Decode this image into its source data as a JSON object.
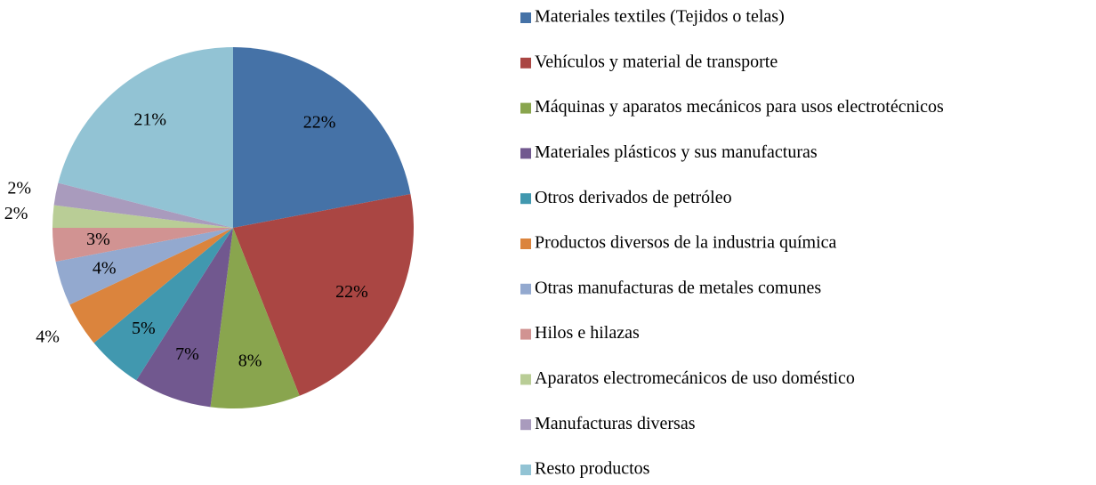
{
  "chart_data": {
    "type": "pie",
    "categories": [
      "Materiales textiles (Tejidos o telas)",
      "Vehículos y material de transporte",
      "Máquinas y aparatos mecánicos para usos electrotécnicos",
      "Materiales plásticos y sus manufacturas",
      "Otros derivados de petróleo",
      "Productos diversos de la industria química",
      "Otras manufacturas de metales comunes",
      "Hilos e hilazas",
      "Aparatos electromecánicos de uso doméstico",
      "Manufacturas diversas",
      "Resto productos"
    ],
    "values": [
      22,
      22,
      8,
      7,
      5,
      4,
      4,
      3,
      2,
      2,
      21
    ],
    "value_labels": [
      "22%",
      "22%",
      "8%",
      "7%",
      "5%",
      "4%",
      "4%",
      "3%",
      "2%",
      "2%",
      "21%"
    ],
    "colors": [
      "#4572a7",
      "#aa4643",
      "#89a54e",
      "#71588f",
      "#4198af",
      "#db843d",
      "#93a9cf",
      "#d19392",
      "#b9cd96",
      "#a99bbd",
      "#92c3d4"
    ],
    "legend": "right"
  }
}
